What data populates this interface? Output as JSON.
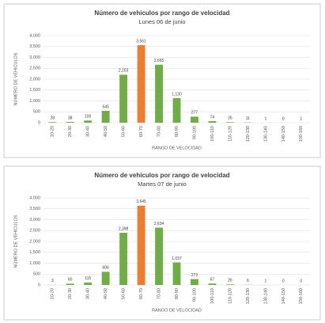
{
  "chart_data": [
    {
      "type": "bar",
      "title": "Número de vehiculos por rango de velocidad",
      "subtitle": "Lunes 06 de junio",
      "x_label": "RANGO DE VELOCIDAD",
      "y_label": "NÚMERO DE VEHÍCULOS",
      "categories": [
        "10-20",
        "20-30",
        "30-40",
        "40-50",
        "50-60",
        "60-70",
        "70-80",
        "80-90",
        "90-100",
        "100-110",
        "110-120",
        "120-130",
        "130-140",
        "140-150",
        "150-160"
      ],
      "values": [
        28,
        38,
        100,
        545,
        2203,
        3561,
        2665,
        1130,
        277,
        74,
        26,
        11,
        1,
        0,
        1
      ],
      "value_labels": [
        "28",
        "38",
        "100",
        "545",
        "2,203",
        "3,561",
        "2,665",
        "1,130",
        "277",
        "74",
        "26",
        "11",
        "1",
        "0",
        "1"
      ],
      "colors": [
        "#70ad47",
        "#70ad47",
        "#70ad47",
        "#70ad47",
        "#70ad47",
        "#ed7d31",
        "#70ad47",
        "#70ad47",
        "#70ad47",
        "#70ad47",
        "#70ad47",
        "#70ad47",
        "#70ad47",
        "#70ad47",
        "#70ad47"
      ],
      "ylim": [
        0,
        4000
      ],
      "yticks": [
        0,
        500,
        {
          "value": 1000,
          "label": "1,000"
        },
        {
          "value": 1500,
          "label": "1,500"
        },
        {
          "value": 2000,
          "label": "2,000"
        },
        {
          "value": 2500,
          "label": "2,500"
        },
        {
          "value": 3000,
          "label": "3,000"
        },
        {
          "value": 3500,
          "label": "3,500"
        },
        {
          "value": 4000,
          "label": "4,000"
        }
      ],
      "grid": true
    },
    {
      "type": "bar",
      "title": "Número de vehiculos por rango de velocidad",
      "subtitle": "Martes 07 de junio",
      "x_label": "RANGO DE VELOCIDAD",
      "y_label": "NÚMERO DE VEHÍCULOS",
      "categories": [
        "10-20",
        "20-30",
        "30-40",
        "40-50",
        "50-60",
        "60-70",
        "70-80",
        "80-90",
        "90-100",
        "100-110",
        "110-120",
        "120-130",
        "130-140",
        "140-150",
        "150-160"
      ],
      "values": [
        3,
        60,
        115,
        606,
        2398,
        3645,
        2634,
        1037,
        273,
        67,
        26,
        6,
        1,
        0,
        0
      ],
      "value_labels": [
        "3",
        "60",
        "115",
        "606",
        "2,398",
        "3,645",
        "2,634",
        "1,037",
        "273",
        "67",
        "26",
        "6",
        "1",
        "0",
        "0"
      ],
      "colors": [
        "#70ad47",
        "#70ad47",
        "#70ad47",
        "#70ad47",
        "#70ad47",
        "#ed7d31",
        "#70ad47",
        "#70ad47",
        "#70ad47",
        "#70ad47",
        "#70ad47",
        "#70ad47",
        "#70ad47",
        "#70ad47",
        "#70ad47"
      ],
      "ylim": [
        0,
        4000
      ],
      "yticks": [
        0,
        500,
        {
          "value": 1000,
          "label": "1,000"
        },
        {
          "value": 1500,
          "label": "1,500"
        },
        {
          "value": 2000,
          "label": "2,000"
        },
        {
          "value": 2500,
          "label": "2,500"
        },
        {
          "value": 3000,
          "label": "3,000"
        },
        {
          "value": 3500,
          "label": "3,500"
        },
        {
          "value": 4000,
          "label": "4,000"
        }
      ],
      "grid": true
    }
  ]
}
